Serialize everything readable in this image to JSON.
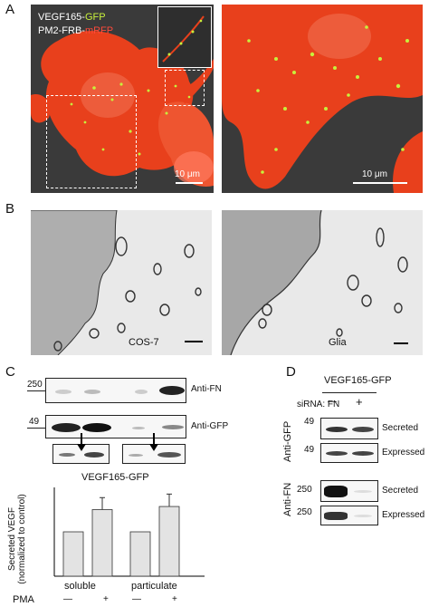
{
  "panel_letters": {
    "a": "A",
    "b": "B",
    "c": "C",
    "d": "D"
  },
  "panel_a": {
    "label_line1_prefix": "VEGF165-",
    "label_line1_suffix": "GFP",
    "label_line2_prefix": "PM2-FRB-",
    "label_line2_suffix": "mRFP",
    "scale_left": "10 μm",
    "scale_right": "10 μm",
    "colors": {
      "green": "#c8f03c",
      "red": "#ff4a3a",
      "orange": "#f04a1a"
    }
  },
  "panel_b": {
    "label_left": "COS-7",
    "label_right": "Glia"
  },
  "panel_c": {
    "mw_250": "250",
    "mw_49": "49",
    "anti_fn": "Anti-FN",
    "anti_gfp": "Anti-GFP",
    "chart_title": "VEGF165-GFP",
    "ylabel_line1": "Secreted VEGF",
    "ylabel_line2": "(normalized to control)",
    "group1": "soluble",
    "group2": "particulate",
    "pma_label": "PMA",
    "pma_values": [
      "—",
      "+",
      "—",
      "+"
    ]
  },
  "chart_data": {
    "type": "bar",
    "title": "VEGF165-GFP",
    "ylabel": "Secreted VEGF (normalized to control)",
    "groups": [
      "soluble",
      "particulate"
    ],
    "categories": [
      "soluble PMA —",
      "soluble PMA +",
      "particulate PMA —",
      "particulate PMA +"
    ],
    "values": [
      1.0,
      1.5,
      1.0,
      1.57
    ],
    "errors": [
      0,
      0.27,
      0,
      0.28
    ],
    "ylim": [
      0,
      2.0
    ],
    "bar_color": "#e3e3e3"
  },
  "panel_d": {
    "title": "VEGF165-GFP",
    "sirna_label": "siRNA: FN",
    "sirna_values": [
      "—",
      "+"
    ],
    "mw_49a": "49",
    "mw_49b": "49",
    "mw_250a": "250",
    "mw_250b": "250",
    "anti_gfp": "Anti-GFP",
    "anti_fn": "Anti-FN",
    "secreted": "Secreted",
    "expressed": "Expressed"
  }
}
